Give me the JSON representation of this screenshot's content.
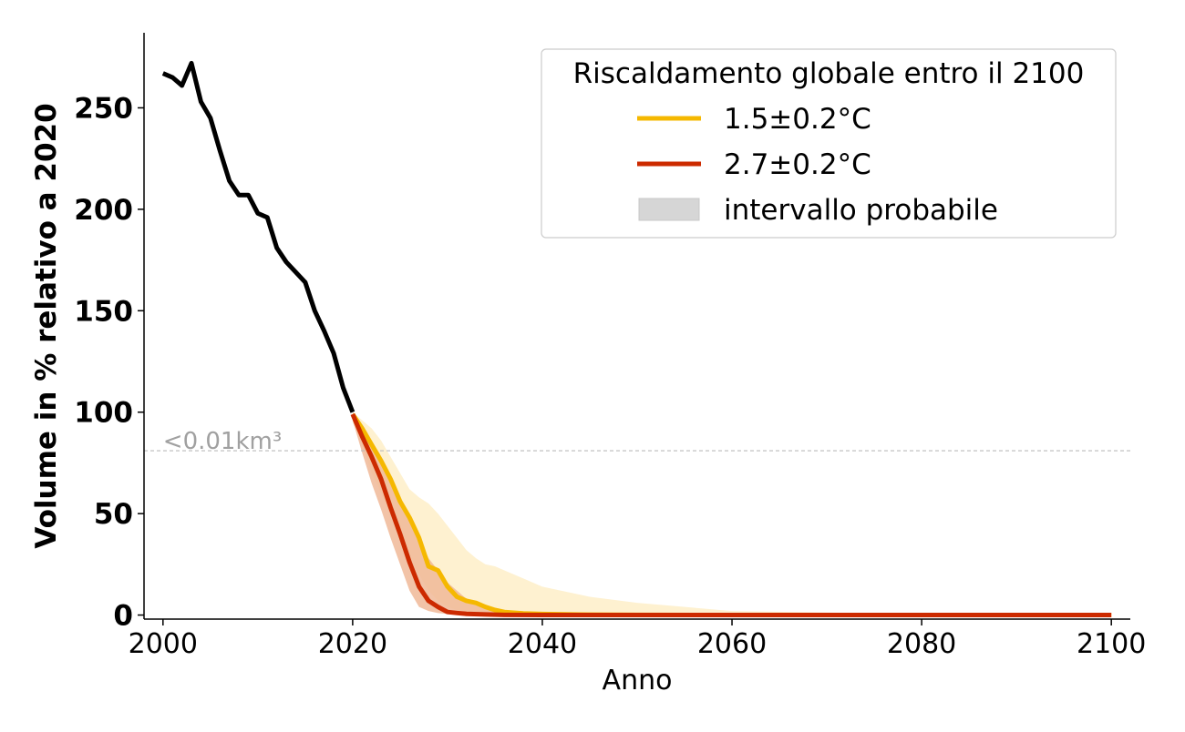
{
  "chart_data": {
    "type": "line",
    "xlabel": "Anno",
    "ylabel": "Volume in % relativo a 2020",
    "xlim": [
      1998,
      2102
    ],
    "ylim": [
      -2,
      287
    ],
    "x_ticks": [
      2000,
      2020,
      2040,
      2060,
      2080,
      2100
    ],
    "y_ticks": [
      0,
      50,
      100,
      150,
      200,
      250
    ],
    "grid": false,
    "legend": {
      "title": "Riscaldamento globale entro il 2100",
      "placement": "top-right",
      "entries": [
        {
          "label": "1.5±0.2°C",
          "kind": "line",
          "color": "#f5b800"
        },
        {
          "label": "2.7±0.2°C",
          "kind": "line",
          "color": "#cc2a00"
        },
        {
          "label": "intervallo probabile",
          "kind": "patch",
          "color": "#d6d6d6"
        }
      ]
    },
    "reference_line": {
      "y": 81,
      "label": "<0.01km³",
      "color": "#bbbbbb",
      "style": "dashed"
    },
    "series": [
      {
        "color": "#000000",
        "x": [
          2000,
          2001,
          2002,
          2003,
          2004,
          2005,
          2006,
          2007,
          2008,
          2009,
          2010,
          2011,
          2012,
          2013,
          2014,
          2015,
          2016,
          2017,
          2018,
          2019,
          2020
        ],
        "values": [
          267,
          265,
          261,
          272,
          253,
          245,
          229,
          214,
          207,
          207,
          198,
          196,
          181,
          174,
          169,
          164,
          150,
          140,
          129,
          112,
          100
        ]
      },
      {
        "name": "1.5±0.2°C",
        "color": "#f5b800",
        "band_color": "#fdecc0",
        "x": [
          2020,
          2021,
          2022,
          2023,
          2024,
          2025,
          2026,
          2027,
          2028,
          2029,
          2030,
          2031,
          2032,
          2033,
          2034,
          2035,
          2036,
          2038,
          2040,
          2045,
          2050,
          2060,
          2080,
          2100
        ],
        "values": [
          99,
          92,
          84,
          76,
          67,
          56,
          48,
          38,
          24,
          22,
          14,
          9,
          7,
          6,
          4,
          2.5,
          1.5,
          0.8,
          0.5,
          0.2,
          0.1,
          0,
          0,
          0
        ],
        "upper": [
          100,
          96,
          92,
          86,
          78,
          70,
          62,
          58,
          55,
          50,
          44,
          38,
          32,
          28,
          25,
          24,
          22,
          18,
          14,
          9,
          6,
          2,
          0.5,
          0.2
        ],
        "lower": [
          95,
          84,
          70,
          60,
          49,
          38,
          28,
          20,
          12,
          7,
          4,
          2.5,
          1.5,
          1,
          0.5,
          0.3,
          0.2,
          0.1,
          0,
          0,
          0,
          0,
          0,
          0
        ]
      },
      {
        "name": "2.7±0.2°C",
        "color": "#cc2a00",
        "band_color": "#f0b898",
        "x": [
          2020,
          2021,
          2022,
          2023,
          2024,
          2025,
          2026,
          2027,
          2028,
          2029,
          2030,
          2031,
          2032,
          2034,
          2036,
          2040,
          2050,
          2060,
          2080,
          2100
        ],
        "values": [
          99,
          88,
          78,
          67,
          53,
          40,
          26,
          14,
          7,
          4,
          1.5,
          1,
          0.6,
          0.3,
          0.1,
          0,
          0,
          0,
          0,
          0
        ],
        "upper": [
          100,
          93,
          86,
          78,
          68,
          58,
          48,
          38,
          28,
          22,
          16,
          12,
          8,
          4,
          2.5,
          1,
          0.3,
          0,
          0,
          0
        ],
        "lower": [
          96,
          80,
          65,
          52,
          38,
          25,
          12,
          4,
          2,
          1,
          0.5,
          0.2,
          0.1,
          0,
          0,
          0,
          0,
          0,
          0,
          0
        ]
      }
    ]
  }
}
